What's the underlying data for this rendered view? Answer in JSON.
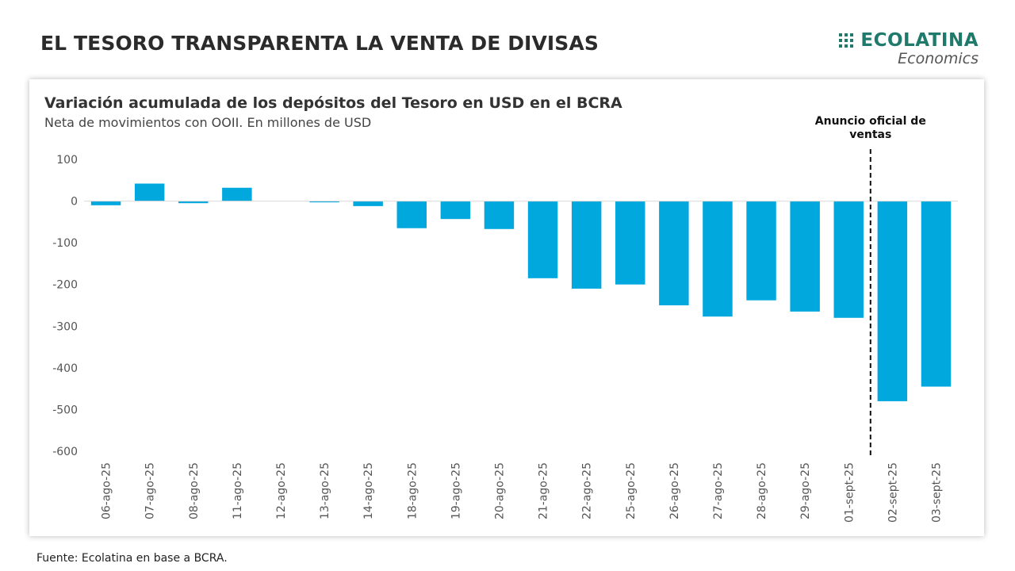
{
  "header": {
    "title": "EL TESORO TRANSPARENTA LA VENTA DE DIVISAS"
  },
  "logo": {
    "name": "ECOLATINA",
    "sub": "Economics",
    "color": "#1f7a6b"
  },
  "footer": {
    "source": "Fuente: Ecolatina en base a BCRA."
  },
  "chart_data": {
    "type": "bar",
    "title": "Variación acumulada de los depósitos del Tesoro en USD en el BCRA",
    "subtitle": "Neta de movimientos con OOII. En millones de USD",
    "categories": [
      "06-ago-25",
      "07-ago-25",
      "08-ago-25",
      "11-ago-25",
      "12-ago-25",
      "13-ago-25",
      "14-ago-25",
      "18-ago-25",
      "19-ago-25",
      "20-ago-25",
      "21-ago-25",
      "22-ago-25",
      "25-ago-25",
      "26-ago-25",
      "27-ago-25",
      "28-ago-25",
      "29-ago-25",
      "01-sept-25",
      "02-sept-25",
      "03-sept-25"
    ],
    "values": [
      -10,
      42,
      -5,
      32,
      0,
      -3,
      -12,
      -65,
      -43,
      -67,
      -185,
      -210,
      -200,
      -250,
      -277,
      -238,
      -265,
      -280,
      -480,
      -445
    ],
    "ylim": [
      -600,
      100
    ],
    "yticks": [
      100,
      0,
      -100,
      -200,
      -300,
      -400,
      -500,
      -600
    ],
    "grid": false,
    "legend": "none",
    "bar_color": "#00a8de",
    "annotation": {
      "lines": [
        "Anuncio oficial de",
        "ventas"
      ],
      "after_category": "01-sept-25",
      "line_style": "dashed"
    }
  }
}
